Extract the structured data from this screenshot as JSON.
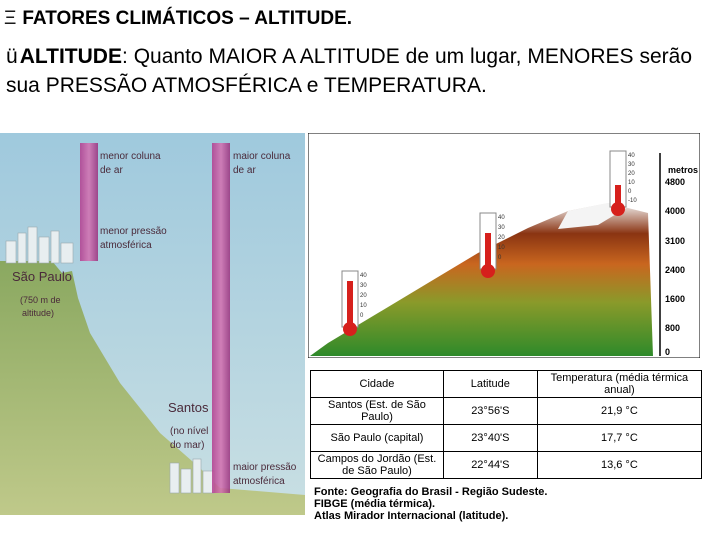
{
  "slide": {
    "bullet": "Ξ",
    "title": "FATORES CLIMÁTICOS – ALTITUDE.",
    "check": "ü",
    "lead": "ALTITUDE",
    "text": ": Quanto MAIOR A ALTITUDE de um lugar, MENORES serão sua PRESSÃO ATMOSFÉRICA e TEMPERATURA."
  },
  "left_figure": {
    "label_col_top_left": [
      "menor coluna",
      "de ar"
    ],
    "label_col_top_right": [
      "maior coluna",
      "de ar"
    ],
    "label_low_pressure": [
      "menor pressão",
      "atmosférica"
    ],
    "city_high": "São Paulo",
    "city_high_note": [
      "(750 m de",
      "altitude)"
    ],
    "city_low": "Santos",
    "city_low_note": [
      "(no nível",
      "do mar)"
    ],
    "label_high_pressure": [
      "maior pressão",
      "atmosférica"
    ]
  },
  "right_figure": {
    "unit": "metros",
    "altitudes": [
      "4800",
      "4000",
      "3100",
      "2400",
      "1600",
      "800",
      "0"
    ],
    "scale_top": [
      "40",
      "30",
      "20",
      "10",
      "0",
      "-10"
    ],
    "scale_mid": [
      "40",
      "30",
      "20",
      "10",
      "0"
    ],
    "scale_low": [
      "40",
      "30",
      "20",
      "10",
      "0"
    ]
  },
  "table": {
    "headers": [
      "Cidade",
      "Latitude",
      "Temperatura (média térmica anual)"
    ],
    "rows": [
      {
        "city": "Santos (Est. de São Paulo)",
        "lat": "23°56'S",
        "temp": "21,9 °C"
      },
      {
        "city": "São Paulo (capital)",
        "lat": "23°40'S",
        "temp": "17,7 °C"
      },
      {
        "city": "Campos do Jordão (Est. de São Paulo)",
        "lat": "22°44'S",
        "temp": "13,6 °C"
      }
    ]
  },
  "source": [
    "Fonte: Geografia do Brasil - Região Sudeste.",
    "FIBGE (média térmica).",
    "Atlas Mirador Internacional (latitude)."
  ]
}
